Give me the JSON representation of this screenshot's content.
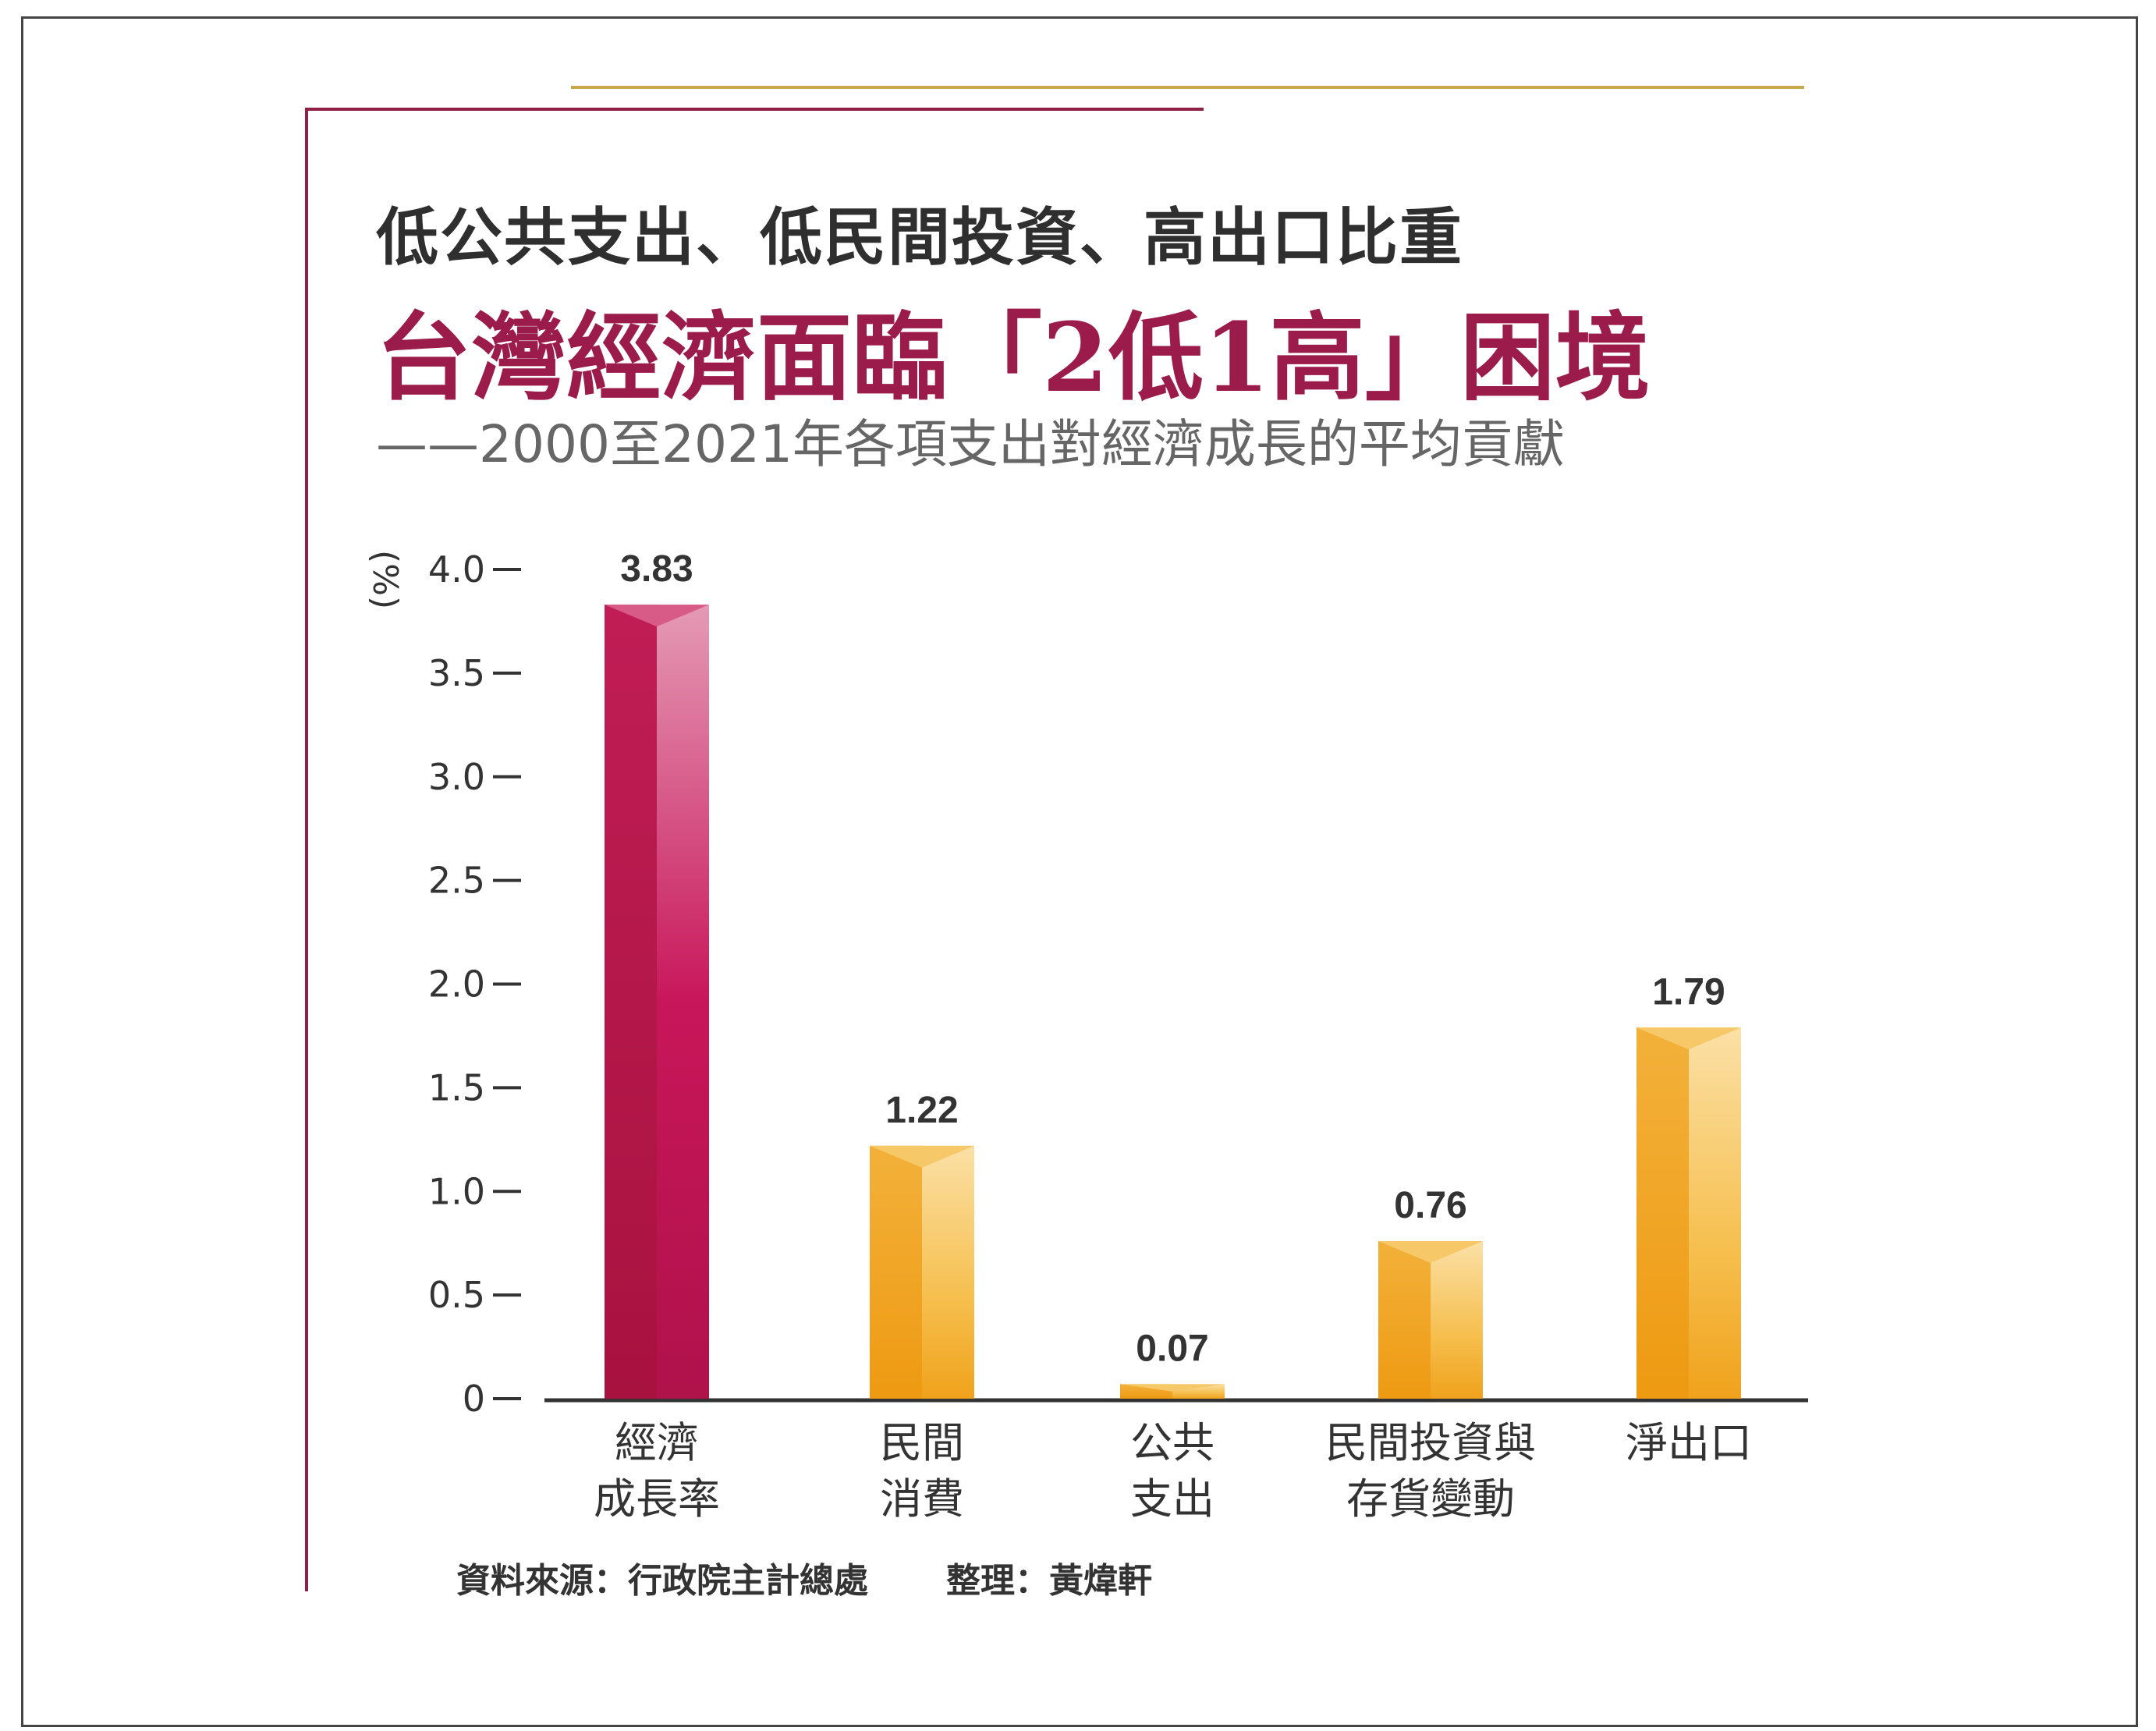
{
  "header": {
    "title_line1": "低公共支出、低民間投資、高出口比重",
    "title_line2": "台灣經濟面臨「2低1高」困境",
    "subtitle": "——2000至2021年各項支出對經濟成長的平均貢獻"
  },
  "footer": {
    "source": "資料來源：行政院主計總處",
    "compiled_by": "整理：黃煒軒"
  },
  "chart_data": {
    "type": "bar",
    "title": "台灣經濟面臨「2低1高」困境",
    "ylabel": "(%)",
    "ylim": [
      0,
      4.0
    ],
    "yticks": [
      "0",
      "0.5",
      "1.0",
      "1.5",
      "2.0",
      "2.5",
      "3.0",
      "3.5",
      "4.0"
    ],
    "ytick_values": [
      0,
      0.5,
      1.0,
      1.5,
      2.0,
      2.5,
      3.0,
      3.5,
      4.0
    ],
    "categories": [
      [
        "經濟",
        "成長率"
      ],
      [
        "民間",
        "消費"
      ],
      [
        "公共",
        "支出"
      ],
      [
        "民間投資與",
        "存貨變動"
      ],
      [
        "淨出口"
      ]
    ],
    "values": [
      3.83,
      1.22,
      0.07,
      0.76,
      1.79
    ],
    "value_labels": [
      "3.83",
      "1.22",
      "0.07",
      "0.76",
      "1.79"
    ],
    "colors": [
      "#b0124a",
      "#f0a21c",
      "#f0a21c",
      "#f0a21c",
      "#f0a21c"
    ]
  }
}
